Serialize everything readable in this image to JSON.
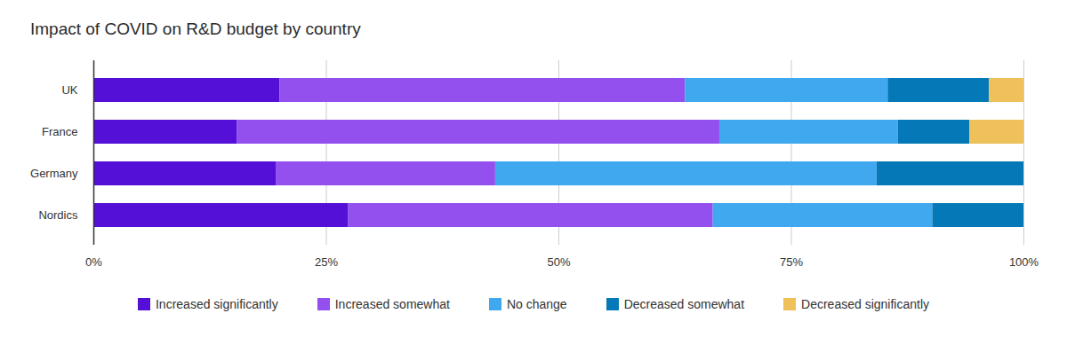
{
  "chart_data": {
    "type": "bar",
    "title": "Impact of COVID on R&D budget by country",
    "orientation": "horizontal",
    "stacked": true,
    "grid": true,
    "legend": "bottom",
    "categories": [
      "UK",
      "France",
      "Germany",
      "Nordics"
    ],
    "series": [
      {
        "name": "Increased significantly",
        "color": "#5410d6",
        "values": [
          20,
          15.4,
          19.6,
          27.4
        ]
      },
      {
        "name": "Increased somewhat",
        "color": "#9350ef",
        "values": [
          43.6,
          51.9,
          23.6,
          39.2
        ]
      },
      {
        "name": "No change",
        "color": "#3fa8ee",
        "values": [
          21.8,
          19.2,
          41.0,
          23.6
        ]
      },
      {
        "name": "Decreased somewhat",
        "color": "#0579b7",
        "values": [
          10.9,
          7.7,
          15.8,
          9.8
        ]
      },
      {
        "name": "Decreased significantly",
        "color": "#eec15a",
        "values": [
          3.7,
          5.8,
          0,
          0
        ]
      }
    ],
    "xlim": [
      0,
      100
    ],
    "xticks": [
      {
        "value": 0,
        "label": "0%"
      },
      {
        "value": 25,
        "label": "25%"
      },
      {
        "value": 50,
        "label": "50%"
      },
      {
        "value": 75,
        "label": "75%"
      },
      {
        "value": 100,
        "label": "100%"
      }
    ]
  }
}
